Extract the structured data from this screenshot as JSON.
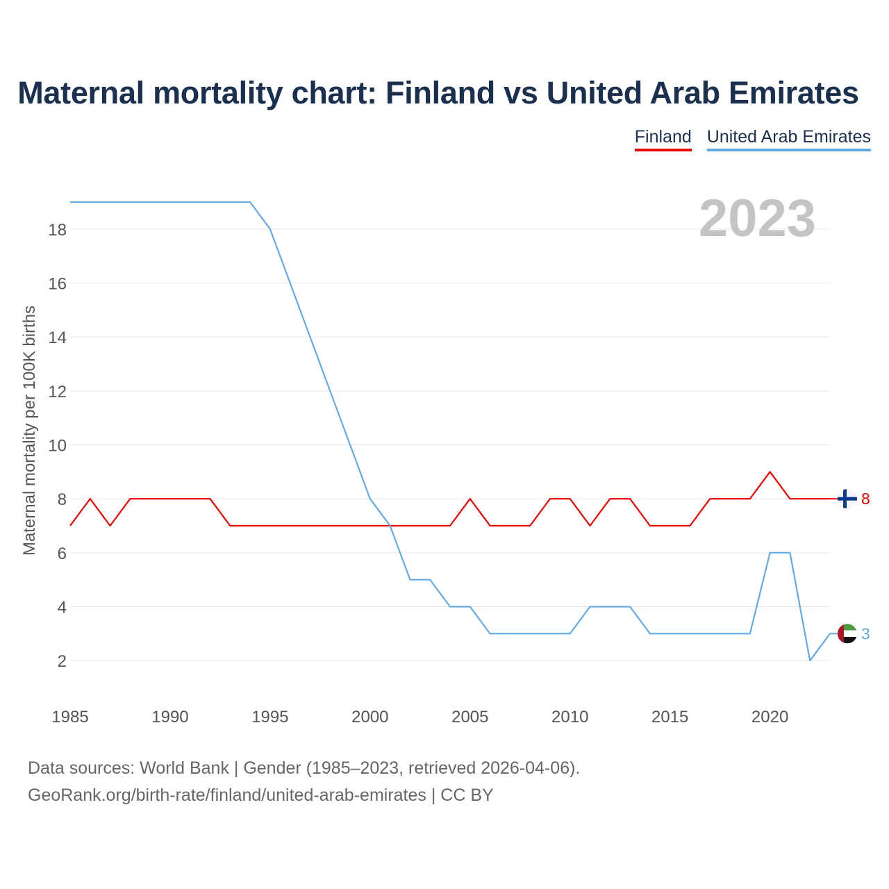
{
  "title": "Maternal mortality chart: Finland vs United Arab Emirates",
  "legend": [
    {
      "label": "Finland",
      "color": "#ee0000"
    },
    {
      "label": "United Arab Emirates",
      "color": "#64a9e4"
    }
  ],
  "footer": {
    "line1": "Data sources: World Bank | Gender (1985–2023, retrieved 2026-04-06).",
    "line2": "GeoRank.org/birth-rate/finland/united-arab-emirates | CC BY"
  },
  "chart_data": {
    "type": "line",
    "title": "Maternal mortality chart: Finland vs United Arab Emirates",
    "xlabel": "",
    "ylabel": "Maternal mortality per 100K births",
    "year_label": "2023",
    "x": [
      1985,
      1986,
      1987,
      1988,
      1989,
      1990,
      1991,
      1992,
      1993,
      1994,
      1995,
      1996,
      1997,
      1998,
      1999,
      2000,
      2001,
      2002,
      2003,
      2004,
      2005,
      2006,
      2007,
      2008,
      2009,
      2010,
      2011,
      2012,
      2013,
      2014,
      2015,
      2016,
      2017,
      2018,
      2019,
      2020,
      2021,
      2022,
      2023
    ],
    "series": [
      {
        "name": "Finland",
        "color": "#ee0000",
        "end_label": "8",
        "values": [
          7,
          8,
          7,
          8,
          8,
          8,
          8,
          8,
          7,
          7,
          7,
          7,
          7,
          7,
          7,
          7,
          7,
          7,
          7,
          7,
          8,
          7,
          7,
          7,
          8,
          8,
          7,
          8,
          8,
          7,
          7,
          7,
          8,
          8,
          8,
          9,
          8,
          8,
          8
        ]
      },
      {
        "name": "United Arab Emirates",
        "color": "#64a9e4",
        "end_label": "3",
        "values": [
          19,
          19,
          19,
          19,
          19,
          19,
          19,
          19,
          19,
          19,
          18,
          16,
          14,
          12,
          10,
          8,
          7,
          5,
          5,
          4,
          4,
          3,
          3,
          3,
          3,
          3,
          4,
          4,
          4,
          3,
          3,
          3,
          3,
          3,
          3,
          6,
          6,
          2,
          3
        ]
      }
    ],
    "xlim": [
      1985,
      2023
    ],
    "ylim": [
      1,
      19
    ],
    "x_ticks": [
      1985,
      1990,
      1995,
      2000,
      2005,
      2010,
      2015,
      2020
    ],
    "y_ticks": [
      2,
      4,
      6,
      8,
      10,
      12,
      14,
      16,
      18
    ],
    "grid": true,
    "legend_position": "top-right"
  }
}
